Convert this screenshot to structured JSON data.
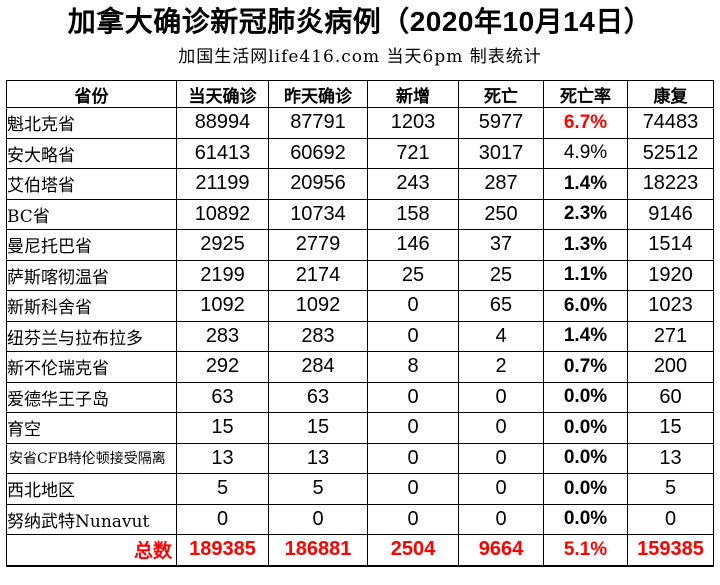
{
  "title": "加拿大确诊新冠肺炎病例（2020年10月14日）",
  "subtitle": "加国生活网life416.com 当天6pm 制表统计",
  "colors": {
    "accent_red": "#FF0000",
    "border": "#000000",
    "background": "#FFFFFF"
  },
  "table": {
    "headers": [
      "省份",
      "当天确诊",
      "昨天确诊",
      "新增",
      "死亡",
      "死亡率",
      "康复"
    ],
    "rows": [
      {
        "province": "魁北克省",
        "today": "88994",
        "yesterday": "87791",
        "new": "1203",
        "deaths": "5977",
        "rate": "6.7%",
        "recovered": "74483",
        "rate_style": "red",
        "small_label": false
      },
      {
        "province": "安大略省",
        "today": "61413",
        "yesterday": "60692",
        "new": "721",
        "deaths": "3017",
        "rate": "4.9%",
        "recovered": "52512",
        "rate_style": "regular",
        "small_label": false
      },
      {
        "province": "艾伯塔省",
        "today": "21199",
        "yesterday": "20956",
        "new": "243",
        "deaths": "287",
        "rate": "1.4%",
        "recovered": "18223",
        "rate_style": "bold",
        "small_label": false
      },
      {
        "province": "BC省",
        "today": "10892",
        "yesterday": "10734",
        "new": "158",
        "deaths": "250",
        "rate": "2.3%",
        "recovered": "9146",
        "rate_style": "bold",
        "small_label": false
      },
      {
        "province": "曼尼托巴省",
        "today": "2925",
        "yesterday": "2779",
        "new": "146",
        "deaths": "37",
        "rate": "1.3%",
        "recovered": "1514",
        "rate_style": "bold",
        "small_label": false
      },
      {
        "province": "萨斯喀彻温省",
        "today": "2199",
        "yesterday": "2174",
        "new": "25",
        "deaths": "25",
        "rate": "1.1%",
        "recovered": "1920",
        "rate_style": "bold",
        "small_label": false
      },
      {
        "province": "新斯科舍省",
        "today": "1092",
        "yesterday": "1092",
        "new": "0",
        "deaths": "65",
        "rate": "6.0%",
        "recovered": "1023",
        "rate_style": "bold",
        "small_label": false
      },
      {
        "province": "纽芬兰与拉布拉多",
        "today": "283",
        "yesterday": "283",
        "new": "0",
        "deaths": "4",
        "rate": "1.4%",
        "recovered": "271",
        "rate_style": "bold",
        "small_label": false
      },
      {
        "province": "新不伦瑞克省",
        "today": "292",
        "yesterday": "284",
        "new": "8",
        "deaths": "2",
        "rate": "0.7%",
        "recovered": "200",
        "rate_style": "bold",
        "small_label": false
      },
      {
        "province": "爱德华王子岛",
        "today": "63",
        "yesterday": "63",
        "new": "0",
        "deaths": "0",
        "rate": "0.0%",
        "recovered": "60",
        "rate_style": "bold",
        "small_label": false
      },
      {
        "province": "育空",
        "today": "15",
        "yesterday": "15",
        "new": "0",
        "deaths": "0",
        "rate": "0.0%",
        "recovered": "15",
        "rate_style": "bold",
        "small_label": false
      },
      {
        "province": "安省CFB特伦顿接受隔离",
        "today": "13",
        "yesterday": "13",
        "new": "0",
        "deaths": "0",
        "rate": "0.0%",
        "recovered": "13",
        "rate_style": "bold",
        "small_label": true
      },
      {
        "province": "西北地区",
        "today": "5",
        "yesterday": "5",
        "new": "0",
        "deaths": "0",
        "rate": "0.0%",
        "recovered": "5",
        "rate_style": "bold",
        "small_label": false
      },
      {
        "province": "努纳武特Nunavut",
        "today": "0",
        "yesterday": "0",
        "new": "0",
        "deaths": "0",
        "rate": "0.0%",
        "recovered": "0",
        "rate_style": "bold",
        "small_label": false
      }
    ],
    "total": {
      "label": "总数",
      "today": "189385",
      "yesterday": "186881",
      "new": "2504",
      "deaths": "9664",
      "rate": "5.1%",
      "recovered": "159385"
    }
  }
}
